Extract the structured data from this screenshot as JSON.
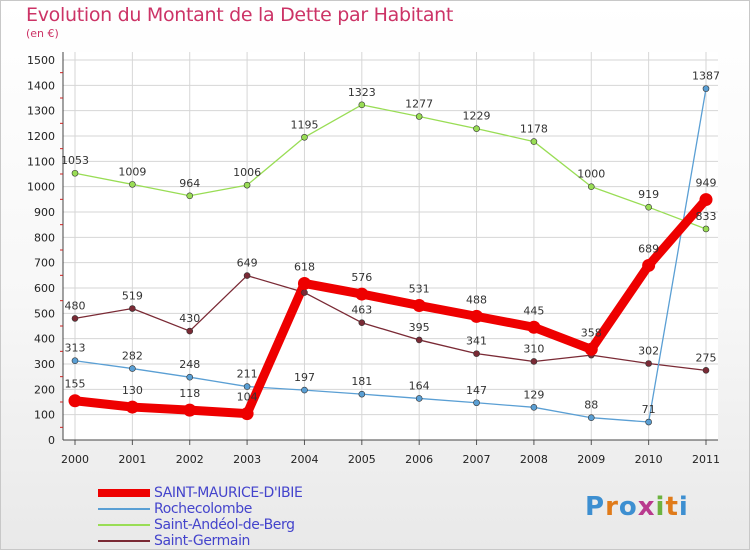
{
  "title": "Evolution du Montant de la Dette par Habitant",
  "subtitle": "(en €)",
  "logo": {
    "text": "Proxiti",
    "colors": [
      "#3d8fd1",
      "#e07b1a",
      "#3d8fd1",
      "#b93a8e",
      "#6cb33f",
      "#e07b1a",
      "#3d8fd1"
    ]
  },
  "chart_data": {
    "type": "line",
    "x": [
      "2000",
      "2001",
      "2002",
      "2003",
      "2004",
      "2005",
      "2006",
      "2007",
      "2008",
      "2009",
      "2010",
      "2011"
    ],
    "ylim": [
      0,
      1500
    ],
    "yticks": [
      0,
      100,
      200,
      300,
      400,
      500,
      600,
      700,
      800,
      900,
      1000,
      1100,
      1200,
      1300,
      1400,
      1500
    ],
    "grid": true,
    "legend_position": "bottom-left",
    "series": [
      {
        "name": "Saint-Andéol-de-Berg",
        "color": "#99dd55",
        "values": [
          1053,
          1009,
          964,
          1006,
          1195,
          1323,
          1277,
          1229,
          1178,
          1000,
          919,
          833
        ]
      },
      {
        "name": "Saint-Germain",
        "color": "#7a2a35",
        "values": [
          480,
          519,
          430,
          649,
          582,
          463,
          395,
          341,
          310,
          335,
          302,
          275
        ],
        "label_hidden_indices": [
          4,
          9
        ]
      },
      {
        "name": "Rochecolombe",
        "color": "#5a9fd4",
        "values": [
          313,
          282,
          248,
          211,
          197,
          181,
          164,
          147,
          129,
          88,
          71,
          1387
        ]
      },
      {
        "name": "SAINT-MAURICE-D'IBIE",
        "color": "#ee0000",
        "values": [
          155,
          130,
          118,
          104,
          618,
          576,
          531,
          488,
          445,
          358,
          689,
          949
        ],
        "bold": true
      }
    ]
  }
}
